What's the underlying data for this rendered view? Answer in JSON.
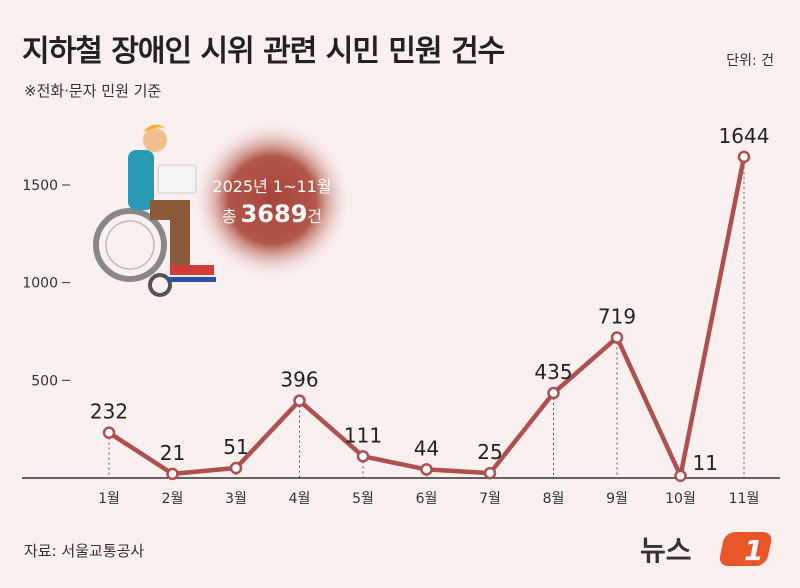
{
  "title": "지하철 장애인 시위 관련 시민 민원 건수",
  "subtitle": "※전화·문자 민원 기준",
  "unit": "단위: 건",
  "source": "자료: 서울교통공사",
  "logo_text": "뉴스1",
  "callout": {
    "period": "2025년 1~11월",
    "total_prefix": "총",
    "total_value": "3689",
    "total_suffix": "건"
  },
  "colors": {
    "line": "#b04f4f",
    "background": "#fbf0f0",
    "bubble": "#a8453a",
    "logo_accent": "#e8562a"
  },
  "chart_data": {
    "type": "line",
    "title": "지하철 장애인 시위 관련 시민 민원 건수",
    "categories": [
      "1월",
      "2월",
      "3월",
      "4월",
      "5월",
      "6월",
      "7월",
      "8월",
      "9월",
      "10월",
      "11월"
    ],
    "values": [
      232,
      21,
      51,
      396,
      111,
      44,
      25,
      435,
      719,
      11,
      1644
    ],
    "yticks": [
      500,
      1000,
      1500
    ],
    "ylim": [
      0,
      1700
    ],
    "grid": false,
    "data_labels": true
  }
}
